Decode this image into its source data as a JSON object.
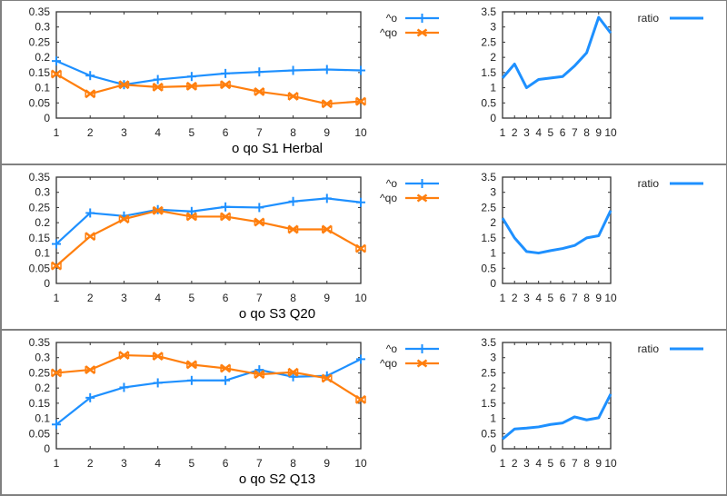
{
  "colors": {
    "o": "#1e90ff",
    "qo": "#ff7f0e",
    "ratio": "#1e90ff",
    "axis": "#333333",
    "frame": "#808080"
  },
  "chart_data": [
    {
      "type": "line",
      "title": "",
      "xlabel": "o qo  S1 Herbal",
      "ylabel": "",
      "x": [
        1,
        2,
        3,
        4,
        5,
        6,
        7,
        8,
        9,
        10
      ],
      "xticks": [
        "1",
        "2",
        "3",
        "4",
        "5",
        "6",
        "7",
        "8",
        "9",
        "10"
      ],
      "yticks": [
        "0",
        "0.05",
        "0.1",
        "0.15",
        "0.2",
        "0.25",
        "0.3",
        "0.35"
      ],
      "ylim": [
        0,
        0.35
      ],
      "legend_position": "top-right-outside",
      "series": [
        {
          "name": "^o",
          "marker": "plus",
          "values": [
            0.188,
            0.14,
            0.11,
            0.127,
            0.137,
            0.147,
            0.152,
            0.157,
            0.16,
            0.157
          ]
        },
        {
          "name": "^qo",
          "marker": "x",
          "values": [
            0.145,
            0.08,
            0.11,
            0.102,
            0.105,
            0.11,
            0.087,
            0.072,
            0.047,
            0.055
          ]
        }
      ]
    },
    {
      "type": "line",
      "title": "",
      "xlabel": "",
      "x": [
        1,
        2,
        3,
        4,
        5,
        6,
        7,
        8,
        9,
        10
      ],
      "xticks": [
        "1",
        "2",
        "3",
        "4",
        "5",
        "6",
        "7",
        "8",
        "9",
        "10"
      ],
      "yticks": [
        "0",
        "0.5",
        "1",
        "1.5",
        "2",
        "2.5",
        "3",
        "3.5"
      ],
      "ylim": [
        0,
        3.5
      ],
      "legend_position": "top-right-outside",
      "series": [
        {
          "name": "ratio",
          "values": [
            1.32,
            1.78,
            1.0,
            1.27,
            1.32,
            1.37,
            1.72,
            2.15,
            3.32,
            2.8
          ]
        }
      ]
    },
    {
      "type": "line",
      "title": "",
      "xlabel": "o qo  S3 Q20",
      "x": [
        1,
        2,
        3,
        4,
        5,
        6,
        7,
        8,
        9,
        10
      ],
      "xticks": [
        "1",
        "2",
        "3",
        "4",
        "5",
        "6",
        "7",
        "8",
        "9",
        "10"
      ],
      "yticks": [
        "0",
        "0.05",
        "0.1",
        "0.15",
        "0.2",
        "0.25",
        "0.3",
        "0.35"
      ],
      "ylim": [
        0,
        0.35
      ],
      "legend_position": "top-right-outside",
      "series": [
        {
          "name": "^o",
          "marker": "plus",
          "values": [
            0.13,
            0.232,
            0.222,
            0.243,
            0.237,
            0.252,
            0.25,
            0.27,
            0.28,
            0.267
          ]
        },
        {
          "name": "^qo",
          "marker": "x",
          "values": [
            0.058,
            0.155,
            0.212,
            0.24,
            0.22,
            0.22,
            0.202,
            0.178,
            0.178,
            0.115
          ]
        }
      ]
    },
    {
      "type": "line",
      "title": "",
      "xlabel": "",
      "x": [
        1,
        2,
        3,
        4,
        5,
        6,
        7,
        8,
        9,
        10
      ],
      "xticks": [
        "1",
        "2",
        "3",
        "4",
        "5",
        "6",
        "7",
        "8",
        "9",
        "10"
      ],
      "yticks": [
        "0",
        "0.5",
        "1",
        "1.5",
        "2",
        "2.5",
        "3",
        "3.5"
      ],
      "ylim": [
        0,
        3.5
      ],
      "legend_position": "top-right-outside",
      "series": [
        {
          "name": "ratio",
          "values": [
            2.15,
            1.5,
            1.05,
            1.0,
            1.08,
            1.15,
            1.25,
            1.5,
            1.57,
            2.4
          ]
        }
      ]
    },
    {
      "type": "line",
      "title": "",
      "xlabel": "o qo  S2 Q13",
      "x": [
        1,
        2,
        3,
        4,
        5,
        6,
        7,
        8,
        9,
        10
      ],
      "xticks": [
        "1",
        "2",
        "3",
        "4",
        "5",
        "6",
        "7",
        "8",
        "9",
        "10"
      ],
      "yticks": [
        "0",
        "0.05",
        "0.1",
        "0.15",
        "0.2",
        "0.25",
        "0.3",
        "0.35"
      ],
      "ylim": [
        0,
        0.35
      ],
      "legend_position": "top-right-outside",
      "series": [
        {
          "name": "^o",
          "marker": "plus",
          "values": [
            0.08,
            0.168,
            0.202,
            0.217,
            0.225,
            0.225,
            0.26,
            0.237,
            0.24,
            0.295
          ]
        },
        {
          "name": "^qo",
          "marker": "x",
          "values": [
            0.25,
            0.26,
            0.308,
            0.305,
            0.277,
            0.265,
            0.245,
            0.252,
            0.232,
            0.162
          ]
        }
      ]
    },
    {
      "type": "line",
      "title": "",
      "xlabel": "",
      "x": [
        1,
        2,
        3,
        4,
        5,
        6,
        7,
        8,
        9,
        10
      ],
      "xticks": [
        "1",
        "2",
        "3",
        "4",
        "5",
        "6",
        "7",
        "8",
        "9",
        "10"
      ],
      "yticks": [
        "0",
        "0.5",
        "1",
        "1.5",
        "2",
        "2.5",
        "3",
        "3.5"
      ],
      "ylim": [
        0,
        3.5
      ],
      "legend_position": "top-right-outside",
      "series": [
        {
          "name": "ratio",
          "values": [
            0.32,
            0.65,
            0.68,
            0.72,
            0.8,
            0.85,
            1.05,
            0.95,
            1.02,
            1.8
          ]
        }
      ]
    }
  ]
}
